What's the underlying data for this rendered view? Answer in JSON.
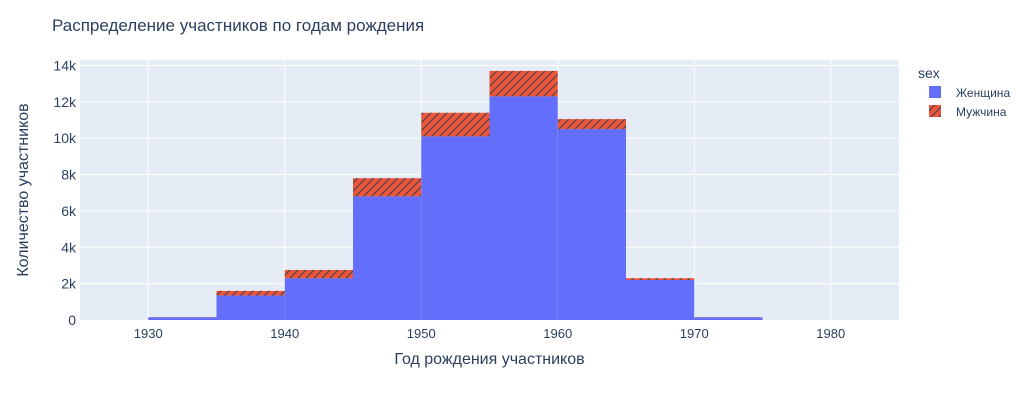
{
  "chart_data": {
    "type": "bar",
    "title": "Распределение участников по годам рождения",
    "xlabel": "Год рождения участников",
    "ylabel": "Количество участников",
    "xlim": [
      1925,
      1985
    ],
    "ylim": [
      0,
      14300
    ],
    "x_ticks": [
      1930,
      1940,
      1950,
      1960,
      1970,
      1980
    ],
    "x_tick_labels": [
      "1930",
      "1940",
      "1950",
      "1960",
      "1970",
      "1980"
    ],
    "y_ticks": [
      0,
      2000,
      4000,
      6000,
      8000,
      10000,
      12000,
      14000
    ],
    "y_tick_labels": [
      "0",
      "2k",
      "4k",
      "6k",
      "8k",
      "10k",
      "12k",
      "14k"
    ],
    "bins": [
      [
        1930,
        1935
      ],
      [
        1935,
        1940
      ],
      [
        1940,
        1945
      ],
      [
        1945,
        1950
      ],
      [
        1950,
        1955
      ],
      [
        1955,
        1960
      ],
      [
        1960,
        1965
      ],
      [
        1965,
        1970
      ],
      [
        1970,
        1975
      ],
      [
        1975,
        1980
      ]
    ],
    "stacked": true,
    "grid": true,
    "legend_title": "sex",
    "legend_position": "right",
    "series": [
      {
        "name": "Женщина",
        "color": "#636efa",
        "pattern": "none",
        "values": [
          150,
          1350,
          2300,
          6800,
          10100,
          12300,
          10500,
          2200,
          150,
          0
        ]
      },
      {
        "name": "Мужчина",
        "color": "#ef553b",
        "pattern": "diagonal-hatch",
        "values": [
          10,
          250,
          450,
          1000,
          1300,
          1400,
          550,
          100,
          10,
          0
        ]
      }
    ]
  }
}
